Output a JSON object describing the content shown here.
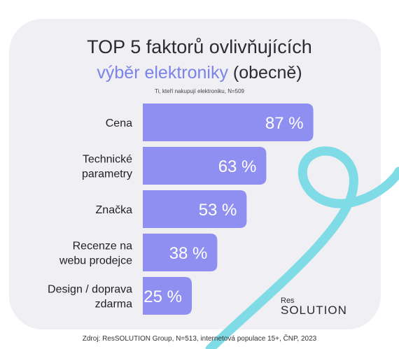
{
  "title": {
    "line1": "TOP 5 faktorů ovlivňujících",
    "line2_accent": "výběr elektroniky",
    "line2_plain": "(obecně)"
  },
  "subtitle": "Ti, kteří nakupují elektroniku, N=509",
  "logo": {
    "res": "Res",
    "solution": "SOLUTION"
  },
  "source": "Zdroj: ResSOLUTION Group, N=513, internetová populace 15+, ČNP, 2023",
  "colors": {
    "bar": "#8e8ff0",
    "accent": "#7b83e8",
    "card": "#f0eff3",
    "swirl": "#7fdbe6"
  },
  "chart_data": {
    "type": "bar",
    "orientation": "horizontal",
    "categories": [
      [
        "Cena"
      ],
      [
        "Technické",
        "parametry"
      ],
      [
        "Značka"
      ],
      [
        "Recenze na",
        "webu prodejce"
      ],
      [
        "Design / doprava",
        "zdarma"
      ]
    ],
    "values": [
      87,
      63,
      53,
      38,
      25
    ],
    "value_labels": [
      "87 %",
      "63 %",
      "53 %",
      "38 %",
      "25 %"
    ],
    "unit": "%"
  }
}
